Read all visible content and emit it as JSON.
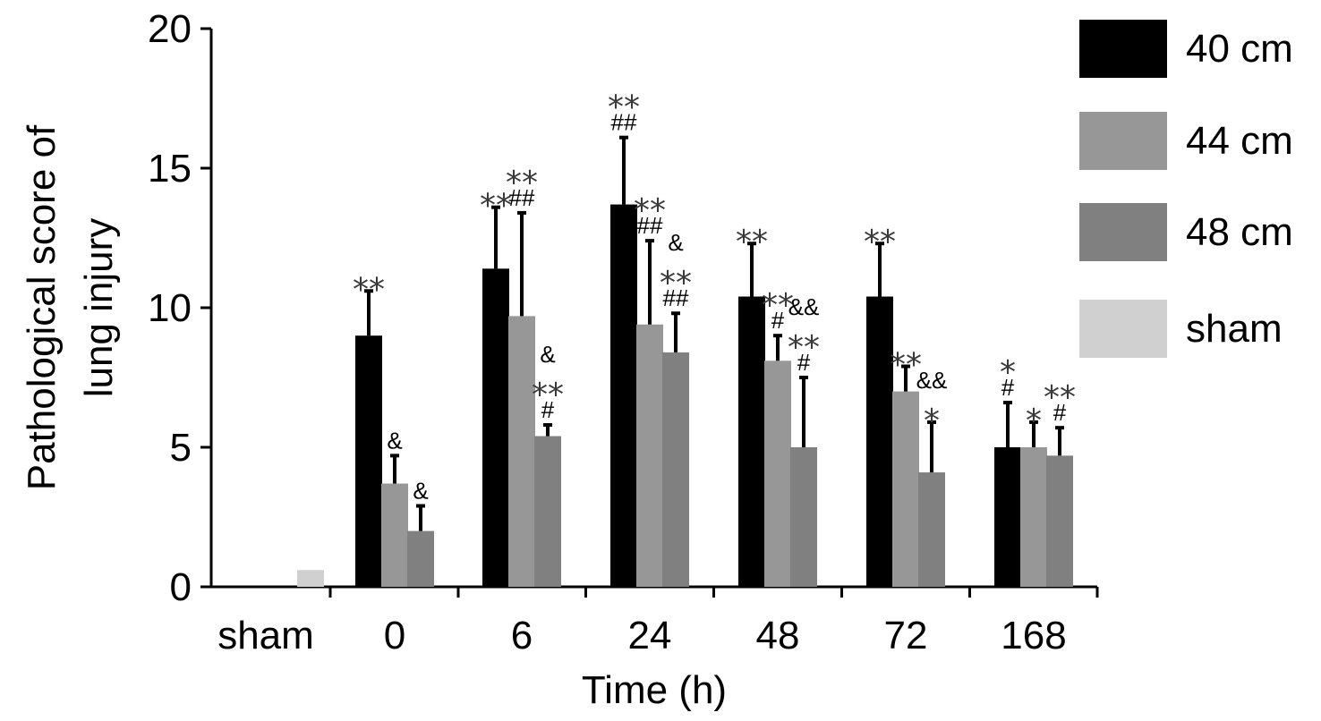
{
  "chart_data": {
    "type": "bar",
    "ylabel": "Pathological score of lung injury",
    "ylabel_lines": [
      "Pathological score of",
      "lung injury"
    ],
    "xlabel": "Time (h)",
    "ylim": [
      0,
      20
    ],
    "yticks": [
      0,
      5,
      10,
      15,
      20
    ],
    "categories": [
      "sham",
      "0",
      "6",
      "24",
      "48",
      "72",
      "168"
    ],
    "legend_position": "right",
    "grid": false,
    "colors": {
      "40 cm": "#000000",
      "44 cm": "#979797",
      "48 cm": "#808080",
      "sham": "#d0d0d0"
    },
    "series": [
      {
        "name": "40 cm",
        "values": [
          null,
          9.0,
          11.4,
          13.7,
          10.4,
          10.4,
          5.0
        ],
        "errors": [
          null,
          1.6,
          2.2,
          2.4,
          1.9,
          1.9,
          1.6
        ]
      },
      {
        "name": "44 cm",
        "values": [
          null,
          3.7,
          9.7,
          9.4,
          8.1,
          7.0,
          5.0
        ],
        "errors": [
          null,
          1.0,
          3.7,
          3.0,
          0.9,
          0.9,
          0.9
        ]
      },
      {
        "name": "48 cm",
        "values": [
          null,
          2.0,
          5.4,
          8.4,
          5.0,
          4.1,
          4.7
        ],
        "errors": [
          null,
          0.9,
          0.4,
          1.4,
          2.5,
          1.8,
          1.0
        ]
      },
      {
        "name": "sham",
        "values": [
          0.6,
          null,
          null,
          null,
          null,
          null,
          null
        ],
        "errors": [
          null,
          null,
          null,
          null,
          null,
          null,
          null
        ]
      }
    ],
    "annotations": [
      [
        null,
        null,
        null,
        null
      ],
      [
        [
          "**"
        ],
        [
          "&"
        ],
        [
          "&"
        ],
        null
      ],
      [
        [
          "**"
        ],
        [
          "**",
          "##"
        ],
        [
          "&",
          "**",
          "#"
        ],
        null
      ],
      [
        [
          "**",
          "##"
        ],
        [
          "**",
          "##"
        ],
        [
          "&",
          "**",
          "##"
        ],
        null
      ],
      [
        [
          "**"
        ],
        [
          "**",
          "#"
        ],
        [
          "&&",
          "**",
          "#"
        ],
        null
      ],
      [
        [
          "**"
        ],
        [
          "**"
        ],
        [
          "&&",
          "*"
        ],
        null
      ],
      [
        [
          "*",
          "#"
        ],
        [
          "*"
        ],
        [
          "**",
          "#"
        ],
        null
      ]
    ]
  }
}
